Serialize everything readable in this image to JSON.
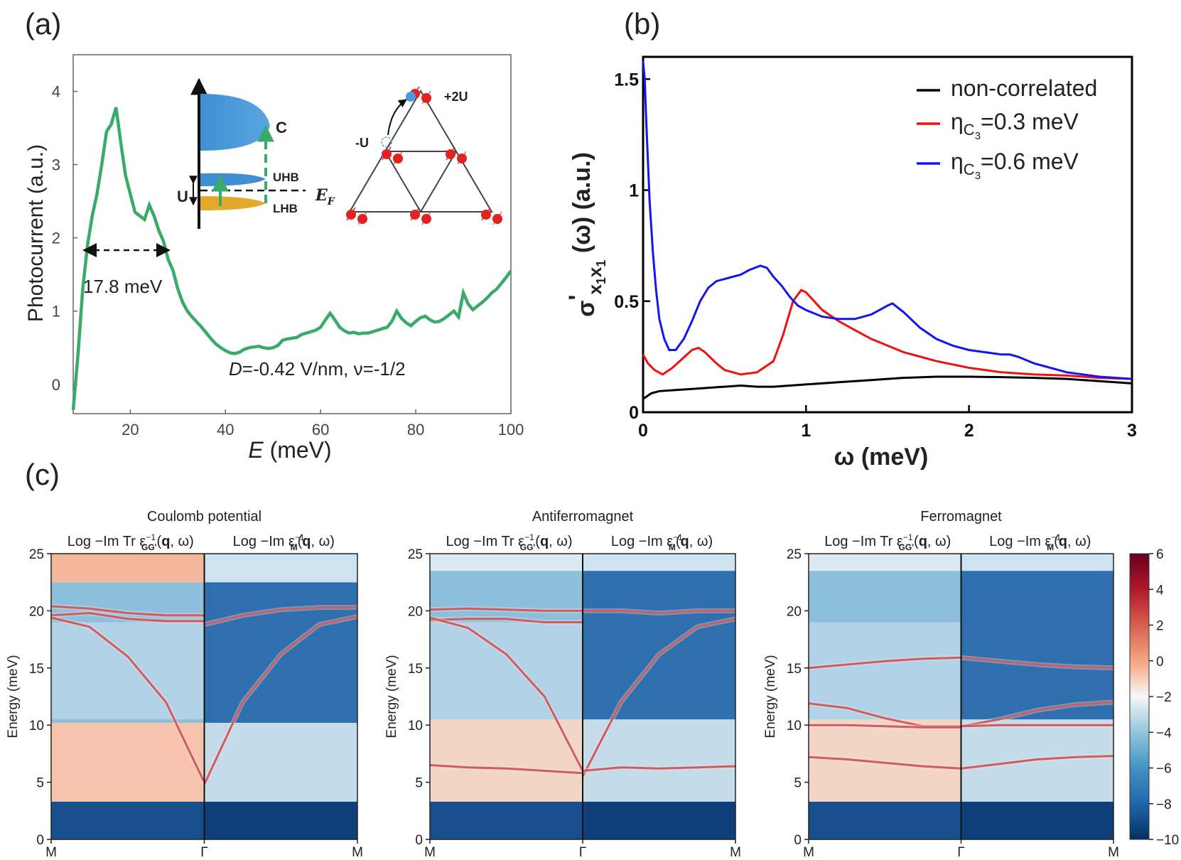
{
  "panel_labels": {
    "a": "(a)",
    "b": "(b)",
    "c": "(c)"
  },
  "colors": {
    "green": "#3aaa6a",
    "black": "#000000",
    "red": "#ee1111",
    "blue": "#1515ee"
  },
  "chart_data": [
    {
      "id": "a",
      "type": "line",
      "xlabel_var": "E",
      "xlabel_unit": " (meV)",
      "ylabel": "Photocurrent (a.u.)",
      "xlim": [
        8,
        100
      ],
      "ylim": [
        -0.4,
        4.5
      ],
      "xticks": [
        20,
        40,
        60,
        80,
        100
      ],
      "yticks": [
        0,
        1,
        2,
        3,
        4
      ],
      "series": [
        {
          "name": "photocurrent",
          "color": "#3aaa6a",
          "x": [
            8,
            9,
            10,
            11,
            12,
            13,
            14,
            15,
            16,
            17,
            18,
            19,
            20,
            21,
            22,
            23,
            24,
            25,
            26,
            27,
            28,
            29,
            30,
            31,
            32,
            33,
            34,
            35,
            36,
            37,
            38,
            39,
            40,
            41,
            42,
            43,
            44,
            45,
            46,
            47,
            48,
            49,
            50,
            51,
            52,
            53,
            54,
            55,
            56,
            57,
            58,
            59,
            60,
            61,
            62,
            63,
            64,
            65,
            66,
            67,
            68,
            69,
            70,
            71,
            72,
            73,
            74,
            75,
            76,
            77,
            78,
            79,
            80,
            81,
            82,
            83,
            84,
            85,
            86,
            87,
            88,
            89,
            90,
            91,
            92,
            93,
            94,
            95,
            96,
            97,
            98,
            99,
            100
          ],
          "y": [
            -0.35,
            0.4,
            1.3,
            1.9,
            2.3,
            2.6,
            3.0,
            3.45,
            3.55,
            3.78,
            3.3,
            2.85,
            2.6,
            2.35,
            2.3,
            2.25,
            2.45,
            2.3,
            2.1,
            1.95,
            1.7,
            1.55,
            1.3,
            1.12,
            1.0,
            0.92,
            0.85,
            0.78,
            0.7,
            0.62,
            0.55,
            0.5,
            0.46,
            0.43,
            0.42,
            0.44,
            0.48,
            0.5,
            0.51,
            0.52,
            0.5,
            0.49,
            0.5,
            0.53,
            0.6,
            0.62,
            0.63,
            0.64,
            0.68,
            0.7,
            0.72,
            0.74,
            0.78,
            0.88,
            0.97,
            0.88,
            0.78,
            0.73,
            0.7,
            0.71,
            0.69,
            0.7,
            0.7,
            0.72,
            0.74,
            0.76,
            0.78,
            0.86,
            1.0,
            0.9,
            0.84,
            0.8,
            0.86,
            0.91,
            0.93,
            0.88,
            0.85,
            0.86,
            0.9,
            0.95,
            1.0,
            0.92,
            1.25,
            1.1,
            1.02,
            1.07,
            1.12,
            1.18,
            1.25,
            1.3,
            1.38,
            1.46,
            1.55
          ]
        }
      ],
      "annotations": {
        "fwhm": "17.8 meV",
        "condition_var": "D",
        "condition_text": "=-0.42 V/nm, ν=-1/2",
        "inset_band_labels": [
          "C",
          "UHB",
          "LHB",
          "U"
        ],
        "inset_fermi_var": "E",
        "inset_fermi_sub": "F",
        "inset_lattice_labels": [
          "+2U",
          "-U"
        ]
      }
    },
    {
      "id": "b",
      "type": "line",
      "xlabel": "ω (meV)",
      "ylabel": "σ'x1x1(ω) (a.u.)",
      "ylabel_parts": {
        "sigma": "σ",
        "prime": "'",
        "sub1": "x",
        "subsub1": "1",
        "sub2": "x",
        "subsub2": "1",
        "rest": " (ω) (a.u.)"
      },
      "xlim": [
        0,
        3
      ],
      "ylim": [
        0,
        1.6
      ],
      "xticks": [
        0,
        1,
        2,
        3
      ],
      "yticks": [
        0,
        0.5,
        1,
        1.5
      ],
      "ytick_labels": [
        "0",
        "0.5",
        "1",
        "1.5"
      ],
      "legend_position": "top-right",
      "legend": [
        {
          "prefix": "non-correlated",
          "sub": "",
          "subsub": "",
          "suffix": ""
        },
        {
          "prefix": "η",
          "sub": "C",
          "subsub": "3",
          "suffix": "=0.3 meV"
        },
        {
          "prefix": "η",
          "sub": "C",
          "subsub": "3",
          "suffix": "=0.6 meV"
        }
      ],
      "series": [
        {
          "name": "non-correlated",
          "color": "#000000",
          "x": [
            0,
            0.05,
            0.1,
            0.2,
            0.3,
            0.4,
            0.5,
            0.6,
            0.7,
            0.8,
            0.9,
            1.0,
            1.2,
            1.4,
            1.6,
            1.8,
            2.0,
            2.2,
            2.4,
            2.6,
            2.8,
            3.0
          ],
          "y": [
            0.06,
            0.085,
            0.095,
            0.1,
            0.105,
            0.11,
            0.115,
            0.12,
            0.115,
            0.115,
            0.12,
            0.125,
            0.135,
            0.145,
            0.155,
            0.16,
            0.16,
            0.158,
            0.155,
            0.15,
            0.14,
            0.13
          ]
        },
        {
          "name": "ηC3=0.3 meV",
          "color": "#ee1111",
          "x": [
            0,
            0.03,
            0.07,
            0.12,
            0.18,
            0.24,
            0.3,
            0.34,
            0.38,
            0.45,
            0.5,
            0.6,
            0.7,
            0.8,
            0.86,
            0.92,
            0.97,
            1.0,
            1.1,
            1.2,
            1.3,
            1.4,
            1.6,
            1.8,
            2.0,
            2.2,
            2.4,
            2.6,
            2.8,
            3.0
          ],
          "y": [
            0.26,
            0.22,
            0.19,
            0.17,
            0.2,
            0.24,
            0.28,
            0.29,
            0.27,
            0.22,
            0.19,
            0.17,
            0.18,
            0.23,
            0.35,
            0.5,
            0.55,
            0.54,
            0.46,
            0.41,
            0.37,
            0.33,
            0.27,
            0.23,
            0.2,
            0.18,
            0.17,
            0.165,
            0.155,
            0.15
          ]
        },
        {
          "name": "ηC3=0.6 meV",
          "color": "#1515ee",
          "x": [
            0,
            0.01,
            0.02,
            0.04,
            0.06,
            0.08,
            0.1,
            0.13,
            0.16,
            0.2,
            0.25,
            0.3,
            0.35,
            0.4,
            0.45,
            0.5,
            0.6,
            0.65,
            0.72,
            0.76,
            0.8,
            0.85,
            0.9,
            0.95,
            1.0,
            1.1,
            1.2,
            1.3,
            1.4,
            1.45,
            1.5,
            1.53,
            1.6,
            1.7,
            1.8,
            1.9,
            2.0,
            2.1,
            2.2,
            2.25,
            2.3,
            2.4,
            2.5,
            2.6,
            2.8,
            3.0
          ],
          "y": [
            1.58,
            1.5,
            1.3,
            0.95,
            0.72,
            0.55,
            0.42,
            0.33,
            0.28,
            0.28,
            0.33,
            0.41,
            0.5,
            0.56,
            0.59,
            0.6,
            0.62,
            0.64,
            0.66,
            0.65,
            0.61,
            0.57,
            0.52,
            0.48,
            0.46,
            0.43,
            0.42,
            0.42,
            0.44,
            0.46,
            0.48,
            0.49,
            0.45,
            0.38,
            0.33,
            0.3,
            0.28,
            0.27,
            0.26,
            0.26,
            0.25,
            0.22,
            0.2,
            0.18,
            0.16,
            0.15
          ]
        }
      ]
    },
    {
      "id": "c",
      "type": "heatmap",
      "ylabel": "Energy (meV)",
      "ylim": [
        0,
        25
      ],
      "yticks": [
        0,
        5,
        10,
        15,
        20,
        25
      ],
      "xtick_labels": [
        "M",
        "Γ",
        "M"
      ],
      "subtitle_left": "Log −Im Tr ε",
      "subtitle_left_sub": "GG'",
      "subtitle_right": "Log −Im ε",
      "subtitle_right_sub": "M",
      "sup": "−1",
      "arg_q": "q",
      "arg_rest": ", ω)",
      "arg_open": "(",
      "panels": [
        {
          "title": "Coulomb potential",
          "lines_left": [
            {
              "v": [
                20.4,
                20.2,
                19.8,
                19.6,
                19.6
              ],
              "bands": true
            },
            {
              "v": [
                19.6,
                19.8,
                19.3,
                19.1,
                19.1
              ],
              "bands": true
            },
            {
              "v": [
                19.4,
                18.6,
                16.0,
                12.0,
                5.0
              ]
            }
          ],
          "lines_right": [
            {
              "v": [
                18.8,
                19.6,
                20.1,
                20.3,
                20.3
              ]
            },
            {
              "v": [
                4.8,
                12.0,
                16.2,
                18.8,
                19.5
              ]
            }
          ],
          "cont_top": 10.2,
          "gap_top": 22.5
        },
        {
          "title": "Antiferromagnet",
          "lines_left": [
            {
              "v": [
                20.1,
                20.2,
                20.1,
                20.0,
                20.0
              ]
            },
            {
              "v": [
                19.2,
                19.3,
                19.3,
                19.0,
                19.0
              ]
            },
            {
              "v": [
                19.4,
                18.5,
                16.2,
                12.5,
                6.0
              ]
            },
            {
              "v": [
                6.5,
                6.3,
                6.2,
                6.0,
                5.8
              ]
            }
          ],
          "lines_right": [
            {
              "v": [
                20.0,
                20.0,
                19.8,
                20.0,
                20.0
              ]
            },
            {
              "v": [
                5.5,
                12.0,
                16.2,
                18.6,
                19.3
              ]
            },
            {
              "v": [
                6.0,
                6.3,
                6.2,
                6.3,
                6.4
              ]
            }
          ],
          "cont_top": 10.5,
          "gap_top": 23.5
        },
        {
          "title": "Ferromagnet",
          "lines_left": [
            {
              "v": [
                15.0,
                15.3,
                15.6,
                15.8,
                15.9
              ]
            },
            {
              "v": [
                11.9,
                11.5,
                10.6,
                9.9,
                9.9
              ]
            },
            {
              "v": [
                10.0,
                10.0,
                9.9,
                9.8,
                9.8
              ]
            },
            {
              "v": [
                7.2,
                7.0,
                6.7,
                6.4,
                6.2
              ]
            }
          ],
          "lines_right": [
            {
              "v": [
                15.9,
                15.6,
                15.3,
                15.1,
                15.0
              ]
            },
            {
              "v": [
                9.9,
                10.5,
                11.3,
                11.8,
                12.0
              ]
            },
            {
              "v": [
                9.9,
                10.0,
                10.0,
                10.0,
                10.0
              ]
            },
            {
              "v": [
                6.2,
                6.6,
                7.0,
                7.2,
                7.3
              ]
            }
          ],
          "cont_top": 10.5,
          "gap_top": 23.5
        }
      ],
      "colorbar": {
        "min": -10,
        "max": 6,
        "ticks": [
          6,
          4,
          2,
          0,
          -2,
          -4,
          -6,
          -8,
          -10
        ],
        "tick_labels": [
          "6",
          "4",
          "2",
          "0",
          "−2",
          "−4",
          "−6",
          "−8",
          "−10"
        ]
      }
    }
  ]
}
